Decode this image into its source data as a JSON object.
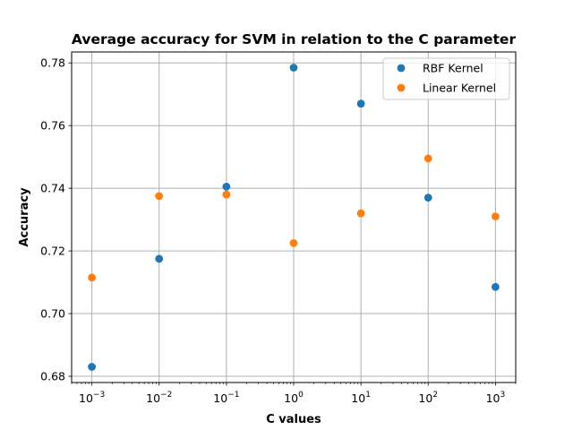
{
  "chart_data": {
    "type": "scatter",
    "title": "Average accuracy for SVM in relation to the C parameter",
    "xlabel": "C values",
    "ylabel": "Accuracy",
    "xscale": "log",
    "xlim": [
      0.0005,
      2000
    ],
    "ylim": [
      0.678,
      0.7835
    ],
    "grid": true,
    "legend_position": "top-right",
    "x_ticks": [
      {
        "value": 0.001,
        "base": "10",
        "exp": "−3"
      },
      {
        "value": 0.01,
        "base": "10",
        "exp": "−2"
      },
      {
        "value": 0.1,
        "base": "10",
        "exp": "−1"
      },
      {
        "value": 1,
        "base": "10",
        "exp": "0"
      },
      {
        "value": 10,
        "base": "10",
        "exp": "1"
      },
      {
        "value": 100,
        "base": "10",
        "exp": "2"
      },
      {
        "value": 1000,
        "base": "10",
        "exp": "3"
      }
    ],
    "y_ticks": [
      {
        "value": 0.68,
        "label": "0.68"
      },
      {
        "value": 0.7,
        "label": "0.70"
      },
      {
        "value": 0.72,
        "label": "0.72"
      },
      {
        "value": 0.74,
        "label": "0.74"
      },
      {
        "value": 0.76,
        "label": "0.76"
      },
      {
        "value": 0.78,
        "label": "0.78"
      }
    ],
    "series": [
      {
        "name": "RBF Kernel",
        "color": "#1f77b4",
        "x": [
          0.001,
          0.01,
          0.1,
          1,
          10,
          100,
          1000
        ],
        "y": [
          0.683,
          0.7175,
          0.7405,
          0.7785,
          0.767,
          0.737,
          0.7085
        ]
      },
      {
        "name": "Linear Kernel",
        "color": "#ff7f0e",
        "x": [
          0.001,
          0.01,
          0.1,
          1,
          10,
          100,
          1000
        ],
        "y": [
          0.7115,
          0.7375,
          0.738,
          0.7225,
          0.732,
          0.7495,
          0.731
        ]
      }
    ]
  }
}
